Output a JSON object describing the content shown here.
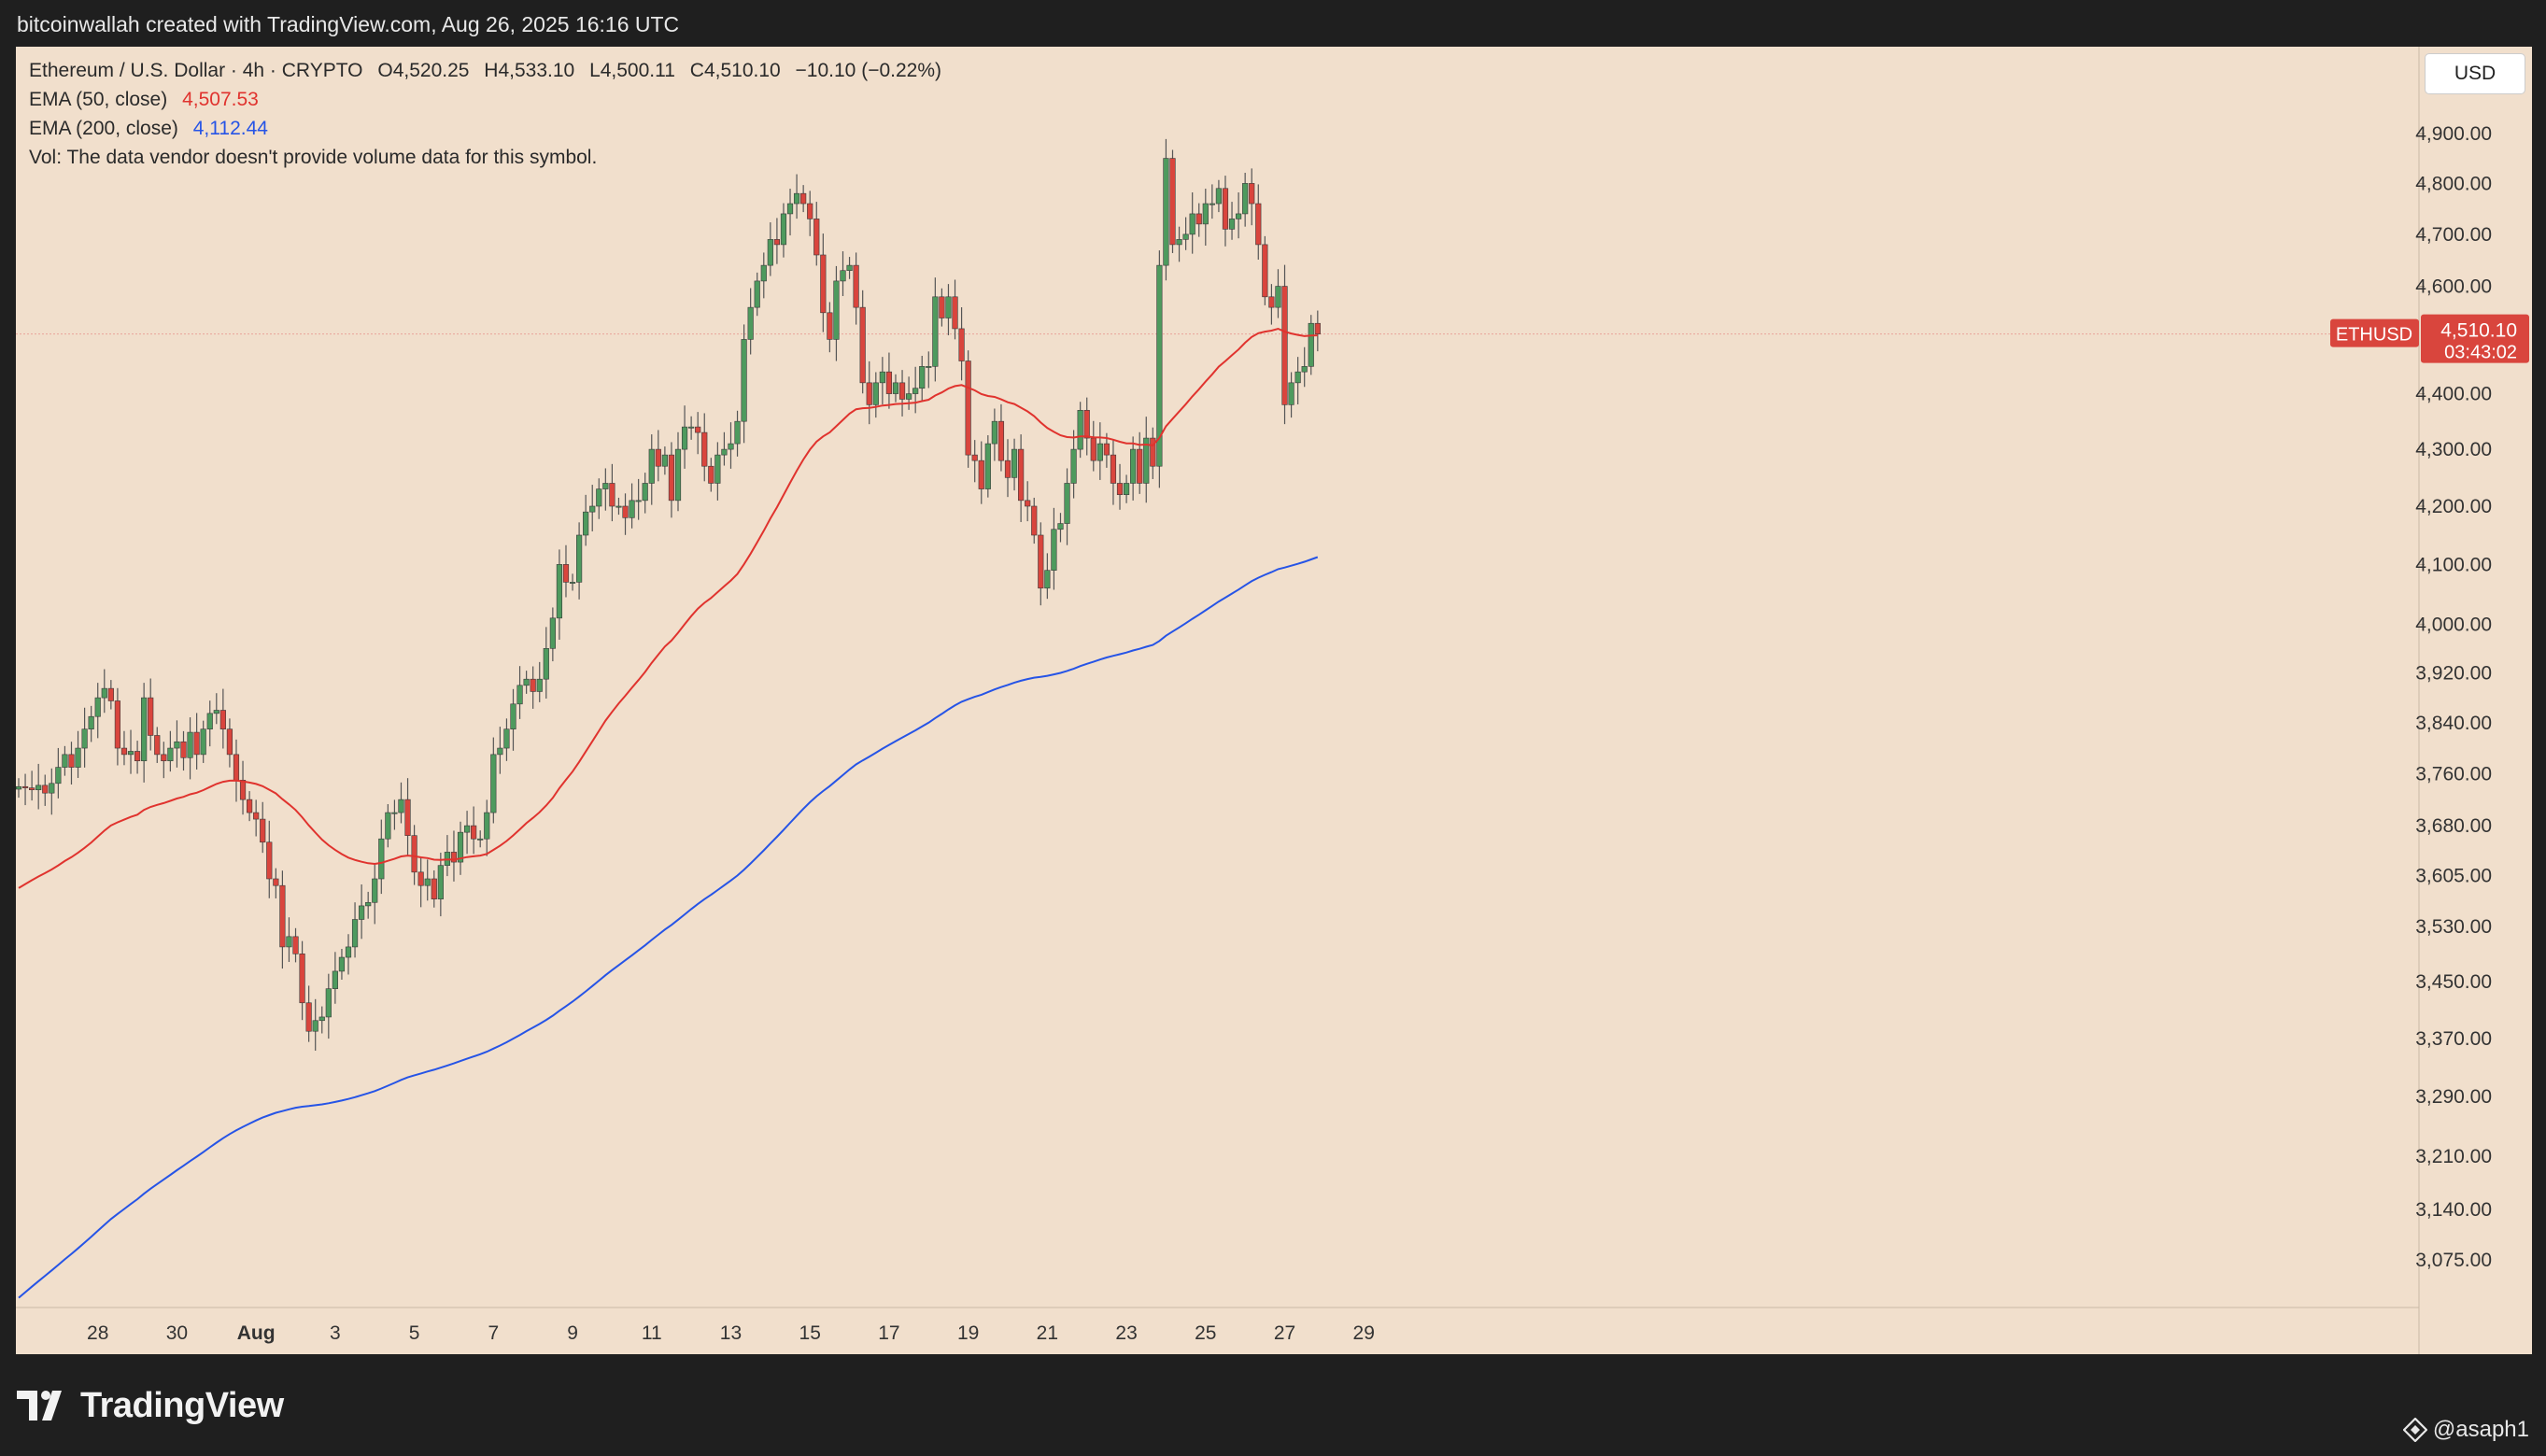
{
  "header": {
    "attribution": "bitcoinwallah created with TradingView.com, Aug 26, 2025 16:16 UTC"
  },
  "legend": {
    "symbol_line": "Ethereum / U.S. Dollar · 4h · CRYPTO",
    "ohlc": {
      "open": "O4,520.25",
      "high": "H4,533.10",
      "low": "L4,500.11",
      "close": "C4,510.10",
      "change": "−10.10 (−0.22%)"
    },
    "ema50": {
      "label": "EMA (50, close)",
      "value": "4,507.53"
    },
    "ema200": {
      "label": "EMA (200, close)",
      "value": "4,112.44"
    },
    "volume_note": "Vol: The data vendor doesn't provide volume data for this symbol."
  },
  "currency_button": "USD",
  "price_badge": {
    "ticker": "ETHUSD",
    "price": "4,510.10",
    "countdown": "03:43:02"
  },
  "footer": {
    "brand": "TradingView",
    "credit": "@asaph1"
  },
  "colors": {
    "up": "#4e9a5e",
    "down": "#d9453d",
    "ema50": "#e0332e",
    "ema200": "#2654e6",
    "background": "#f1dfcc"
  },
  "chart_data": {
    "type": "candlestick",
    "interval": "4h",
    "y_scale": "log",
    "ylim": [
      3000,
      5000
    ],
    "current_price": 4510.1,
    "y_ticks": [
      {
        "value": 4900,
        "label": "4,900.00"
      },
      {
        "value": 4800,
        "label": "4,800.00"
      },
      {
        "value": 4700,
        "label": "4,700.00"
      },
      {
        "value": 4600,
        "label": "4,600.00"
      },
      {
        "value": 4400,
        "label": "4,400.00"
      },
      {
        "value": 4300,
        "label": "4,300.00"
      },
      {
        "value": 4200,
        "label": "4,200.00"
      },
      {
        "value": 4100,
        "label": "4,100.00"
      },
      {
        "value": 4000,
        "label": "4,000.00"
      },
      {
        "value": 3920,
        "label": "3,920.00"
      },
      {
        "value": 3840,
        "label": "3,840.00"
      },
      {
        "value": 3760,
        "label": "3,760.00"
      },
      {
        "value": 3680,
        "label": "3,680.00"
      },
      {
        "value": 3605,
        "label": "3,605.00"
      },
      {
        "value": 3530,
        "label": "3,530.00"
      },
      {
        "value": 3450,
        "label": "3,450.00"
      },
      {
        "value": 3370,
        "label": "3,370.00"
      },
      {
        "value": 3290,
        "label": "3,290.00"
      },
      {
        "value": 3210,
        "label": "3,210.00"
      },
      {
        "value": 3140,
        "label": "3,140.00"
      },
      {
        "value": 3075,
        "label": "3,075.00"
      }
    ],
    "x_ticks": [
      {
        "bar": 12,
        "label": "28"
      },
      {
        "bar": 24,
        "label": "30"
      },
      {
        "bar": 36,
        "label": "Aug"
      },
      {
        "bar": 48,
        "label": "3"
      },
      {
        "bar": 60,
        "label": "5"
      },
      {
        "bar": 72,
        "label": "7"
      },
      {
        "bar": 84,
        "label": "9"
      },
      {
        "bar": 96,
        "label": "11"
      },
      {
        "bar": 108,
        "label": "13"
      },
      {
        "bar": 120,
        "label": "15"
      },
      {
        "bar": 132,
        "label": "17"
      },
      {
        "bar": 144,
        "label": "19"
      },
      {
        "bar": 156,
        "label": "21"
      },
      {
        "bar": 168,
        "label": "23"
      },
      {
        "bar": 180,
        "label": "25"
      },
      {
        "bar": 192,
        "label": "27"
      },
      {
        "bar": 204,
        "label": "29"
      }
    ],
    "closes": [
      3740,
      3738,
      3735,
      3742,
      3730,
      3745,
      3770,
      3790,
      3770,
      3800,
      3830,
      3850,
      3880,
      3895,
      3875,
      3800,
      3790,
      3795,
      3780,
      3880,
      3820,
      3790,
      3780,
      3800,
      3810,
      3785,
      3825,
      3790,
      3830,
      3855,
      3860,
      3830,
      3790,
      3750,
      3720,
      3700,
      3690,
      3655,
      3600,
      3590,
      3500,
      3515,
      3490,
      3420,
      3380,
      3395,
      3400,
      3440,
      3465,
      3485,
      3500,
      3540,
      3560,
      3565,
      3600,
      3660,
      3700,
      3700,
      3720,
      3665,
      3610,
      3590,
      3600,
      3570,
      3620,
      3640,
      3625,
      3670,
      3680,
      3660,
      3660,
      3700,
      3790,
      3800,
      3830,
      3870,
      3900,
      3910,
      3890,
      3910,
      3960,
      4010,
      4100,
      4070,
      4070,
      4150,
      4190,
      4200,
      4230,
      4240,
      4200,
      4200,
      4180,
      4210,
      4210,
      4240,
      4300,
      4270,
      4290,
      4210,
      4300,
      4340,
      4340,
      4330,
      4270,
      4240,
      4290,
      4300,
      4310,
      4350,
      4500,
      4560,
      4610,
      4640,
      4690,
      4680,
      4740,
      4760,
      4780,
      4760,
      4730,
      4660,
      4550,
      4500,
      4610,
      4630,
      4640,
      4560,
      4420,
      4380,
      4420,
      4440,
      4400,
      4420,
      4390,
      4400,
      4410,
      4450,
      4450,
      4580,
      4540,
      4580,
      4520,
      4460,
      4290,
      4280,
      4230,
      4310,
      4350,
      4280,
      4250,
      4300,
      4210,
      4200,
      4150,
      4060,
      4090,
      4160,
      4170,
      4240,
      4300,
      4370,
      4320,
      4280,
      4310,
      4290,
      4240,
      4220,
      4240,
      4300,
      4240,
      4320,
      4270,
      4640,
      4850,
      4680,
      4690,
      4700,
      4740,
      4720,
      4760,
      4760,
      4790,
      4710,
      4730,
      4740,
      4800,
      4760,
      4680,
      4580,
      4560,
      4600,
      4380,
      4420,
      4440,
      4450,
      4530,
      4510
    ],
    "ema50_end": 4507.53,
    "ema200_end": 4112.44
  }
}
